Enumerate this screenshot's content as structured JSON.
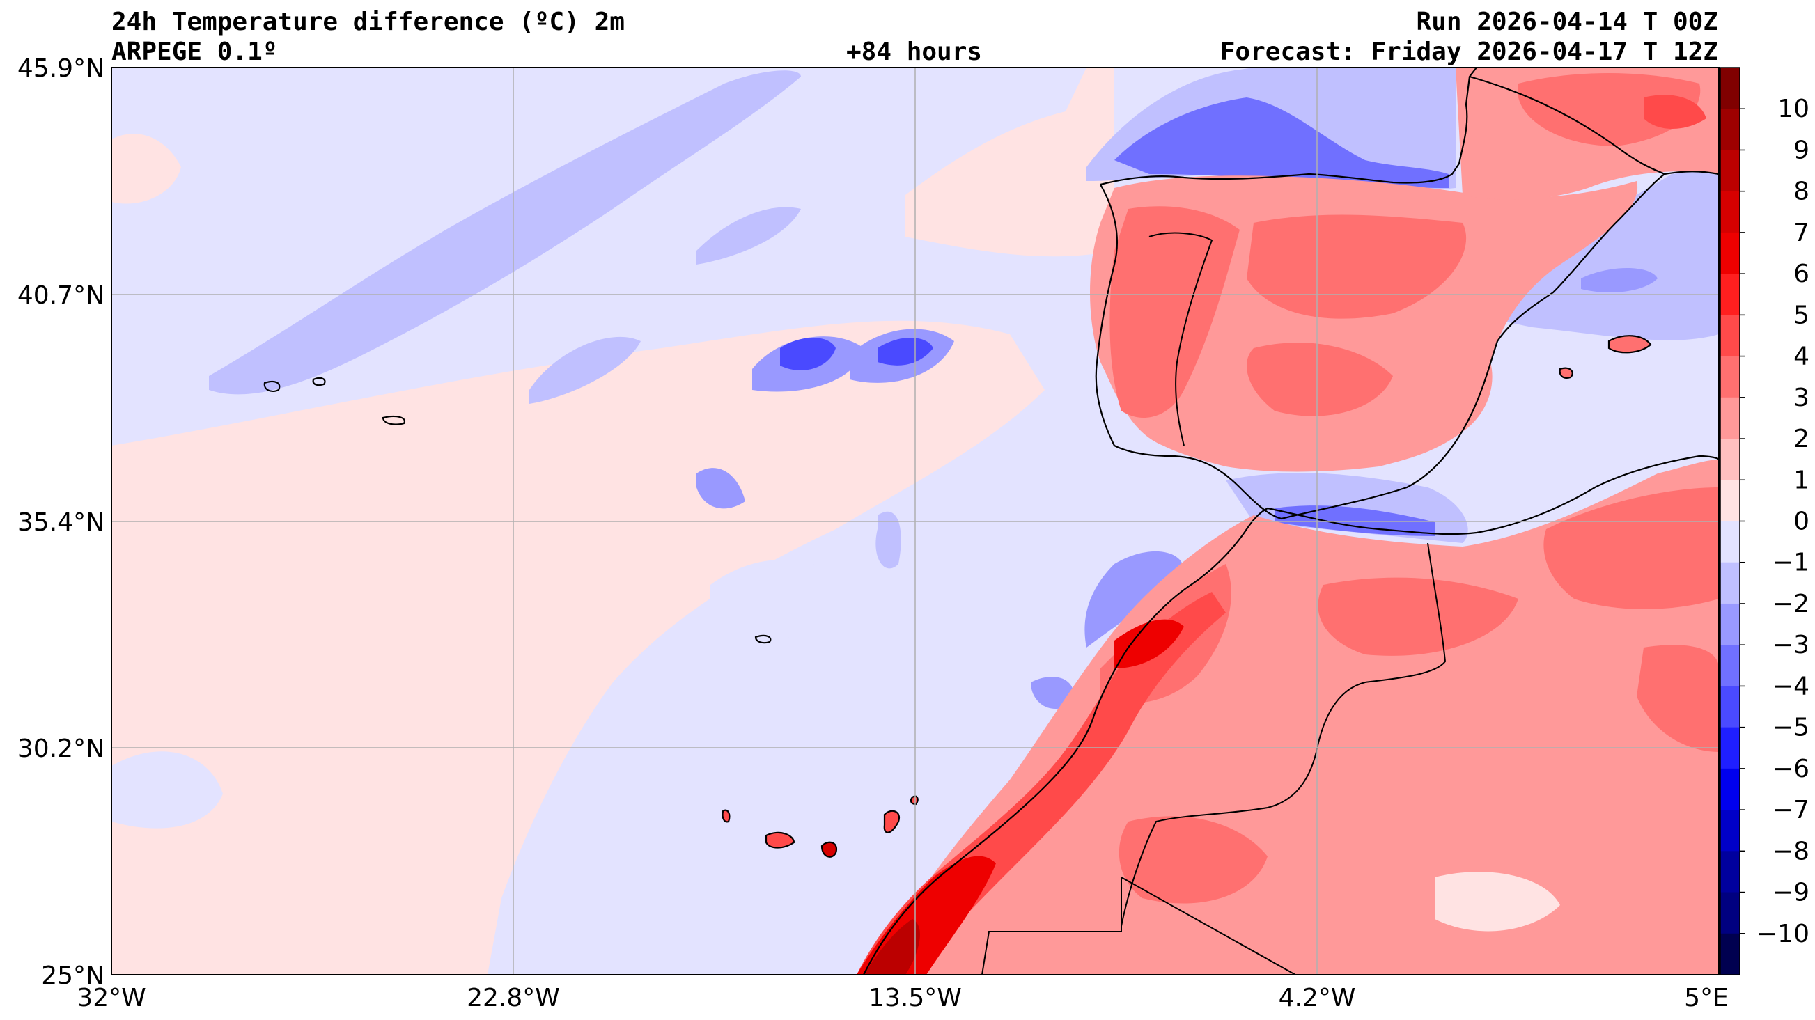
{
  "header": {
    "title": "24h Temperature difference (ºC) 2m",
    "model": "ARPEGE 0.1º",
    "lead": "+84 hours",
    "run": "Run 2026-04-14 T 00Z",
    "forecast": "Forecast: Friday 2026-04-17 T 12Z"
  },
  "axes": {
    "lon_labels": [
      "32°W",
      "22.8°W",
      "13.5°W",
      "4.2°W",
      "5°E"
    ],
    "lat_labels": [
      "45.9°N",
      "40.7°N",
      "35.4°N",
      "30.2°N",
      "25°N"
    ],
    "lon_values": [
      -32,
      -22.8,
      -13.5,
      -4.2,
      5
    ],
    "lat_values": [
      45.9,
      40.7,
      35.4,
      30.2,
      25
    ],
    "grid": true
  },
  "colorbar": {
    "labels": [
      "10",
      "9",
      "8",
      "7",
      "6",
      "5",
      "4",
      "3",
      "2",
      "1",
      "0",
      "−1",
      "−2",
      "−3",
      "−4",
      "−5",
      "−6",
      "−7",
      "−8",
      "−9",
      "−10"
    ],
    "colors": [
      "#800000",
      "#9e0000",
      "#bb0000",
      "#d60000",
      "#ee0000",
      "#ff1f1f",
      "#ff4a4a",
      "#ff7070",
      "#ff9999",
      "#ffc0c0",
      "#ffe3e3",
      "#e3e3ff",
      "#c0c0ff",
      "#9999ff",
      "#7070ff",
      "#4a4aff",
      "#1f1fff",
      "#0000ee",
      "#0000c8",
      "#00009e",
      "#000080",
      "#000050"
    ]
  },
  "colors": {
    "ocean_base": "#e3e3ff",
    "warm_weak": "#ffe3e3",
    "coast": "#000000",
    "grid": "#b0b0b0"
  }
}
